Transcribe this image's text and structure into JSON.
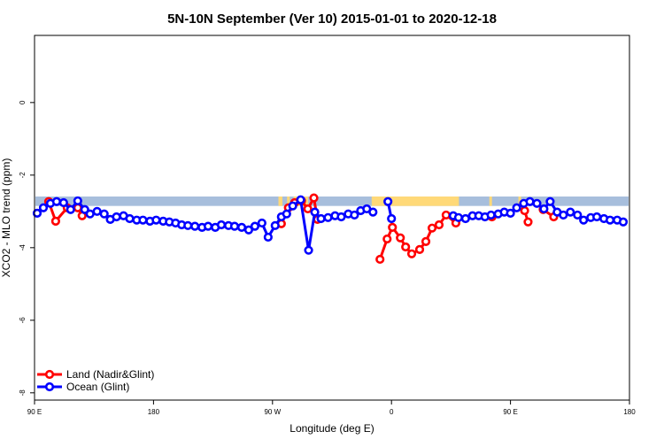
{
  "chart_data": {
    "type": "line",
    "title": "5N-10N September (Ver 10)   2015-01-01 to 2020-12-18",
    "xlabel": "Longitude (deg E)",
    "ylabel": "XCO2 - MLO trend (ppm)",
    "xlim": [
      90,
      540
    ],
    "ylim": [
      -8.2,
      1.85
    ],
    "x_ticks": [
      {
        "value": 90,
        "label": "90 E"
      },
      {
        "value": 180,
        "label": "180"
      },
      {
        "value": 270,
        "label": "90 W"
      },
      {
        "value": 360,
        "label": "0"
      },
      {
        "value": 450,
        "label": "90 E"
      },
      {
        "value": 540,
        "label": "180"
      }
    ],
    "y_ticks": [
      {
        "value": 0,
        "label": "0"
      },
      {
        "value": -2,
        "label": "-2"
      },
      {
        "value": -4,
        "label": "-4"
      },
      {
        "value": -6,
        "label": "-6"
      },
      {
        "value": -8,
        "label": "-8"
      }
    ],
    "grid": false,
    "legend_position": "bottom-left",
    "band": {
      "ymin": -2.85,
      "ymax": -2.59,
      "ocean_color": "#a7bedc",
      "land_color": "#ffd978",
      "land_spans": [
        [
          274.5,
          277.5
        ],
        [
          281,
          283
        ],
        [
          286,
          297
        ],
        [
          345,
          411
        ],
        [
          434,
          436
        ],
        [
          456,
          458
        ]
      ]
    },
    "series": [
      {
        "name": "Land (Nadir&Glint)",
        "color": "#ff0000",
        "segments": [
          [
            [
              100.7,
              -2.73
            ],
            [
              106,
              -3.27
            ],
            [
              114.7,
              -2.9
            ],
            [
              122.7,
              -2.9
            ],
            [
              126,
              -3.12
            ]
          ],
          [
            [
              276.7,
              -3.34
            ],
            [
              282,
              -2.9
            ],
            [
              286.7,
              -2.76
            ],
            [
              292,
              -2.71
            ],
            [
              296.7,
              -2.93
            ],
            [
              301.3,
              -2.63
            ],
            [
              304,
              -3.22
            ]
          ],
          [
            [
              351.3,
              -4.32
            ],
            [
              356.7,
              -3.76
            ],
            [
              360.7,
              -3.44
            ],
            [
              366.7,
              -3.73
            ],
            [
              370.7,
              -3.98
            ],
            [
              375.3,
              -4.17
            ],
            [
              381.3,
              -4.05
            ],
            [
              386,
              -3.83
            ],
            [
              390.7,
              -3.46
            ],
            [
              396,
              -3.37
            ],
            [
              401.3,
              -3.1
            ],
            [
              408.7,
              -3.32
            ]
          ],
          [
            [
              436,
              -3.15
            ]
          ],
          [
            [
              460.7,
              -2.98
            ],
            [
              463.3,
              -3.29
            ]
          ],
          [
            [
              474.7,
              -2.95
            ],
            [
              482.7,
              -3.15
            ]
          ]
        ]
      },
      {
        "name": "Ocean (Glint)",
        "color": "#0000ff",
        "segments": [
          [
            [
              92,
              -3.05
            ],
            [
              96.7,
              -2.9
            ],
            [
              102,
              -2.78
            ],
            [
              106.7,
              -2.73
            ],
            [
              112,
              -2.76
            ],
            [
              117.3,
              -2.95
            ],
            [
              122.7,
              -2.71
            ],
            [
              128,
              -2.95
            ],
            [
              132,
              -3.07
            ],
            [
              137.3,
              -3.0
            ],
            [
              142.7,
              -3.07
            ],
            [
              147.3,
              -3.22
            ],
            [
              152,
              -3.15
            ],
            [
              157.3,
              -3.12
            ],
            [
              162,
              -3.2
            ],
            [
              167.3,
              -3.24
            ],
            [
              172,
              -3.24
            ],
            [
              177.3,
              -3.27
            ],
            [
              182,
              -3.24
            ],
            [
              187.3,
              -3.27
            ],
            [
              192,
              -3.29
            ],
            [
              196.7,
              -3.32
            ],
            [
              201.3,
              -3.37
            ],
            [
              206,
              -3.39
            ],
            [
              211.3,
              -3.41
            ],
            [
              216.7,
              -3.44
            ],
            [
              221.3,
              -3.41
            ],
            [
              226.7,
              -3.44
            ],
            [
              231.3,
              -3.37
            ],
            [
              236.7,
              -3.39
            ],
            [
              241.3,
              -3.41
            ],
            [
              246.7,
              -3.44
            ],
            [
              252,
              -3.51
            ],
            [
              256.7,
              -3.41
            ],
            [
              262,
              -3.32
            ],
            [
              266.7,
              -3.71
            ],
            [
              272,
              -3.39
            ],
            [
              276.7,
              -3.15
            ],
            [
              280.7,
              -3.07
            ],
            [
              285.3,
              -2.85
            ],
            [
              291.3,
              -2.68
            ],
            [
              297.3,
              -4.07
            ],
            [
              302,
              -3.02
            ],
            [
              306.7,
              -3.2
            ],
            [
              312,
              -3.17
            ],
            [
              317.3,
              -3.12
            ],
            [
              322,
              -3.15
            ],
            [
              327.3,
              -3.07
            ],
            [
              332,
              -3.1
            ],
            [
              336.7,
              -2.98
            ],
            [
              341.3,
              -2.93
            ],
            [
              346,
              -3.02
            ]
          ],
          [
            [
              357.3,
              -2.73
            ],
            [
              360,
              -3.2
            ]
          ],
          [
            [
              406.7,
              -3.12
            ],
            [
              410.7,
              -3.17
            ],
            [
              416,
              -3.2
            ],
            [
              421.3,
              -3.12
            ],
            [
              426,
              -3.12
            ],
            [
              430.7,
              -3.15
            ],
            [
              435.3,
              -3.1
            ],
            [
              440.7,
              -3.07
            ],
            [
              445.3,
              -3.02
            ],
            [
              450,
              -3.05
            ],
            [
              454.7,
              -2.9
            ],
            [
              460,
              -2.78
            ],
            [
              464.7,
              -2.73
            ],
            [
              470,
              -2.78
            ],
            [
              475.3,
              -2.93
            ],
            [
              480,
              -2.73
            ],
            [
              485.3,
              -3.02
            ],
            [
              490,
              -3.1
            ],
            [
              495.3,
              -3.02
            ],
            [
              500.7,
              -3.1
            ],
            [
              505.3,
              -3.24
            ],
            [
              510.7,
              -3.17
            ],
            [
              515.3,
              -3.15
            ],
            [
              520.7,
              -3.2
            ],
            [
              525.3,
              -3.24
            ],
            [
              530.7,
              -3.24
            ],
            [
              535.3,
              -3.29
            ]
          ]
        ]
      }
    ]
  }
}
